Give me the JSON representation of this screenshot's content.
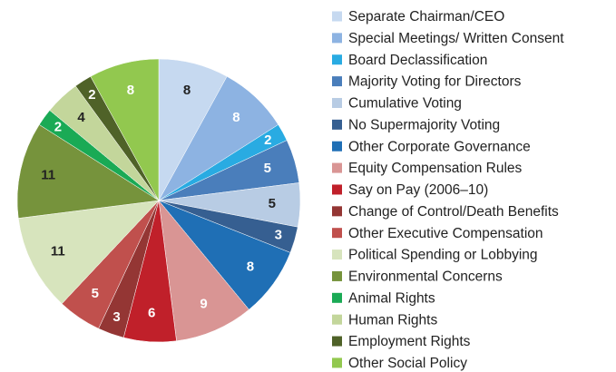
{
  "chart_data": {
    "type": "pie",
    "categories": [
      "Separate Chairman/CEO",
      "Special Meetings/ Written Consent",
      "Board Declassification",
      "Majority Voting for Directors",
      "Cumulative Voting",
      "No Supermajority Voting",
      "Other Corporate Governance",
      "Equity Compensation Rules",
      "Say on Pay (2006–10)",
      "Change of Control/Death Benefits",
      "Other Executive Compensation",
      "Political Spending or Lobbying",
      "Environmental Concerns",
      "Animal Rights",
      "Human Rights",
      "Employment Rights",
      "Other Social Policy"
    ],
    "values": [
      8,
      8,
      2,
      5,
      5,
      3,
      8,
      9,
      6,
      3,
      5,
      11,
      11,
      2,
      4,
      2,
      8
    ],
    "colors": [
      "#c6d9f0",
      "#8db3e2",
      "#29abe2",
      "#4a7ebb",
      "#b8cce4",
      "#365f91",
      "#1f6fb5",
      "#d99594",
      "#c0202a",
      "#943634",
      "#c0504d",
      "#d7e4bd",
      "#76933c",
      "#1aaa55",
      "#c3d69b",
      "#4f6228",
      "#92c84f"
    ],
    "label_colors": [
      "#222",
      "#fff",
      "#fff",
      "#fff",
      "#222",
      "#fff",
      "#fff",
      "#fff",
      "#fff",
      "#fff",
      "#fff",
      "#222",
      "#222",
      "#fff",
      "#222",
      "#fff",
      "#fff"
    ],
    "legend": "right"
  }
}
